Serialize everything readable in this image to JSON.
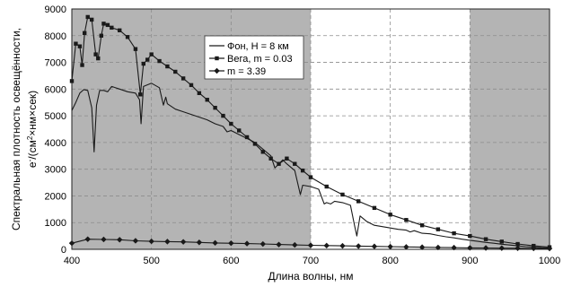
{
  "chart_data": {
    "type": "line",
    "xlabel": "Длина волны, нм",
    "ylabel_line1": "Спектральная плотность освещённости,",
    "ylabel_line2_parts": [
      "e",
      "-",
      "/(см",
      "2",
      "×нм×сек)"
    ],
    "xlim": [
      400,
      1000
    ],
    "ylim": [
      0,
      9000
    ],
    "x_ticks": [
      "400",
      "500",
      "600",
      "700",
      "800",
      "900",
      "1000"
    ],
    "y_ticks": [
      "0",
      "1000",
      "2000",
      "3000",
      "4000",
      "5000",
      "6000",
      "7000",
      "8000",
      "9000"
    ],
    "shaded_bands": [
      [
        400,
        700
      ],
      [
        900,
        1000
      ]
    ],
    "grid": true,
    "legend_position": "top-center",
    "colors": {
      "shade": "#b4b4b4",
      "line": "#1a1a1a",
      "grid": "#8c8c8c"
    },
    "series": [
      {
        "name": "Фон, H = 8 км",
        "marker": "none",
        "x": [
          400,
          405,
          410,
          415,
          420,
          425,
          428,
          431,
          435,
          440,
          445,
          450,
          460,
          470,
          480,
          485,
          487,
          490,
          500,
          510,
          515,
          518,
          520,
          530,
          540,
          550,
          560,
          570,
          580,
          590,
          595,
          600,
          610,
          620,
          630,
          640,
          650,
          655,
          660,
          665,
          670,
          680,
          687,
          690,
          700,
          710,
          717,
          720,
          725,
          730,
          740,
          750,
          755,
          758,
          762,
          770,
          780,
          790,
          800,
          810,
          820,
          825,
          830,
          840,
          850,
          860,
          870,
          880,
          890,
          900,
          910,
          920,
          930,
          940,
          950,
          960,
          970,
          980,
          990,
          1000
        ],
        "y": [
          5200,
          5500,
          5850,
          5980,
          5950,
          5300,
          3650,
          5400,
          5950,
          5950,
          5900,
          6100,
          6000,
          5900,
          5850,
          5600,
          4700,
          6100,
          6220,
          6050,
          5400,
          5700,
          5450,
          5250,
          5150,
          5050,
          4950,
          4850,
          4700,
          4600,
          4400,
          4450,
          4300,
          4150,
          4000,
          3750,
          3500,
          3050,
          3200,
          3350,
          3200,
          2950,
          2050,
          2400,
          2350,
          2250,
          1700,
          1750,
          1700,
          1800,
          1750,
          1650,
          900,
          500,
          1250,
          1050,
          900,
          850,
          800,
          750,
          720,
          650,
          700,
          600,
          580,
          520,
          470,
          430,
          380,
          340,
          300,
          260,
          230,
          190,
          160,
          130,
          100,
          80,
          60,
          50
        ]
      },
      {
        "name": "Вега, m = 0.03",
        "marker": "square",
        "x": [
          400,
          405,
          410,
          413,
          416,
          420,
          425,
          430,
          433,
          437,
          440,
          445,
          450,
          460,
          470,
          480,
          486,
          490,
          495,
          500,
          510,
          520,
          530,
          540,
          550,
          560,
          570,
          580,
          590,
          600,
          610,
          620,
          630,
          640,
          650,
          660,
          670,
          680,
          690,
          700,
          720,
          740,
          760,
          780,
          800,
          820,
          840,
          860,
          880,
          900,
          920,
          940,
          960,
          980,
          1000
        ],
        "y": [
          6300,
          7700,
          7600,
          6900,
          8100,
          8700,
          8600,
          7300,
          7150,
          8000,
          8450,
          8400,
          8300,
          8200,
          7950,
          7500,
          5800,
          6950,
          7100,
          7300,
          7050,
          6850,
          6650,
          6400,
          6150,
          5850,
          5600,
          5300,
          5000,
          4700,
          4450,
          4200,
          3950,
          3650,
          3400,
          3200,
          3400,
          3200,
          2950,
          2700,
          2350,
          2050,
          1800,
          1550,
          1300,
          1100,
          900,
          750,
          600,
          500,
          380,
          290,
          200,
          130,
          80
        ]
      },
      {
        "name": "m = 3.39",
        "marker": "diamond",
        "x": [
          400,
          420,
          440,
          460,
          480,
          500,
          520,
          540,
          560,
          580,
          600,
          620,
          640,
          660,
          680,
          700,
          720,
          740,
          760,
          780,
          800,
          820,
          840,
          860,
          880,
          900,
          920,
          940,
          960,
          980,
          1000
        ],
        "y": [
          230,
          380,
          370,
          360,
          320,
          300,
          290,
          280,
          260,
          240,
          230,
          215,
          200,
          180,
          165,
          150,
          140,
          130,
          120,
          110,
          100,
          90,
          80,
          70,
          65,
          55,
          50,
          45,
          40,
          35,
          30
        ]
      }
    ]
  }
}
